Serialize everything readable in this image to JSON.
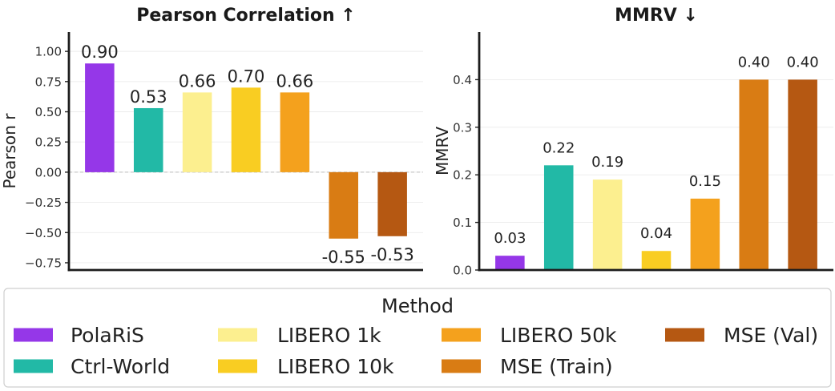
{
  "chart_data": [
    {
      "type": "bar",
      "title": "Pearson Correlation ↑",
      "ylabel": "Pearson r",
      "categories": [
        "PolaRiS",
        "Ctrl-World",
        "LIBERO 1k",
        "LIBERO 10k",
        "LIBERO 50k",
        "MSE (Train)",
        "MSE (Val)"
      ],
      "values": [
        0.9,
        0.53,
        0.66,
        0.7,
        0.66,
        -0.55,
        -0.53
      ],
      "data_labels": [
        "0.90",
        "0.53",
        "0.66",
        "0.70",
        "0.66",
        "-0.55",
        "-0.53"
      ],
      "colors": [
        "#9537e8",
        "#22b9a6",
        "#fcef8f",
        "#f9cd22",
        "#f4a11d",
        "#d97c14",
        "#b55812"
      ],
      "ylim": [
        -0.81,
        1.16
      ],
      "yticks": [
        1.0,
        0.75,
        0.5,
        0.25,
        0.0,
        -0.25,
        -0.5,
        -0.75
      ],
      "ytick_labels": [
        "1.00",
        "0.75",
        "0.50",
        "0.25",
        "0.00",
        "−0.25",
        "−0.50",
        "−0.75"
      ],
      "zero_line": "dashed",
      "grid": true
    },
    {
      "type": "bar",
      "title": "MMRV ↓",
      "ylabel": "MMRV",
      "categories": [
        "PolaRiS",
        "Ctrl-World",
        "LIBERO 1k",
        "LIBERO 10k",
        "LIBERO 50k",
        "MSE (Train)",
        "MSE (Val)"
      ],
      "values": [
        0.03,
        0.22,
        0.19,
        0.04,
        0.15,
        0.4,
        0.4
      ],
      "data_labels": [
        "0.03",
        "0.22",
        "0.19",
        "0.04",
        "0.15",
        "0.40",
        "0.40"
      ],
      "colors": [
        "#9537e8",
        "#22b9a6",
        "#fcef8f",
        "#f9cd22",
        "#f4a11d",
        "#d97c14",
        "#b55812"
      ],
      "ylim": [
        0,
        0.5
      ],
      "yticks": [
        0.0,
        0.1,
        0.2,
        0.3,
        0.4
      ],
      "ytick_labels": [
        "0.0",
        "0.1",
        "0.2",
        "0.3",
        "0.4"
      ],
      "grid": true
    }
  ],
  "legend": {
    "title": "Method",
    "placement": "bottom",
    "items": [
      {
        "label": "PolaRiS",
        "color": "#9537e8"
      },
      {
        "label": "Ctrl-World",
        "color": "#22b9a6"
      },
      {
        "label": "LIBERO 1k",
        "color": "#fcef8f"
      },
      {
        "label": "LIBERO 10k",
        "color": "#f9cd22"
      },
      {
        "label": "LIBERO 50k",
        "color": "#f4a11d"
      },
      {
        "label": "MSE (Train)",
        "color": "#d97c14"
      },
      {
        "label": "MSE (Val)",
        "color": "#b55812"
      }
    ]
  }
}
